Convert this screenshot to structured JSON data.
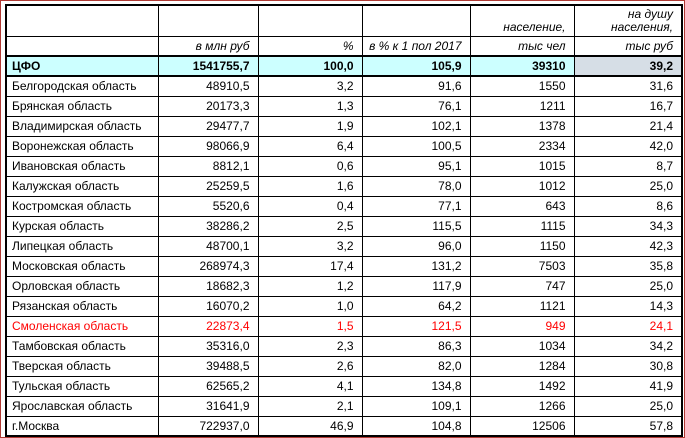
{
  "colors": {
    "frame_border": "#b03a34",
    "grid": "#000000",
    "total_row_bg": "#ccffff",
    "selected_cell_bg": "#d6dee6",
    "alert_text": "#ff0000"
  },
  "table": {
    "headers_row1": [
      "",
      "",
      "",
      "",
      "население,",
      "на душу\nнаселения,"
    ],
    "headers_row2": [
      "",
      "в млн руб",
      "%",
      "в % к 1 пол 2017",
      "тыс чел",
      "тыс руб"
    ],
    "rows": [
      {
        "name": "ЦФО",
        "values": [
          "1541755,7",
          "100,0",
          "105,9",
          "39310",
          "39,2"
        ],
        "type": "total"
      },
      {
        "name": "Белгородская область",
        "values": [
          "48910,5",
          "3,2",
          "91,6",
          "1550",
          "31,6"
        ],
        "type": "normal"
      },
      {
        "name": "Брянская область",
        "values": [
          "20173,3",
          "1,3",
          "76,1",
          "1211",
          "16,7"
        ],
        "type": "normal"
      },
      {
        "name": "Владимирская область",
        "values": [
          "29477,7",
          "1,9",
          "102,1",
          "1378",
          "21,4"
        ],
        "type": "normal"
      },
      {
        "name": "Воронежская область",
        "values": [
          "98066,9",
          "6,4",
          "100,5",
          "2334",
          "42,0"
        ],
        "type": "normal"
      },
      {
        "name": "Ивановская область",
        "values": [
          "8812,1",
          "0,6",
          "95,1",
          "1015",
          "8,7"
        ],
        "type": "normal"
      },
      {
        "name": "Калужская область",
        "values": [
          "25259,5",
          "1,6",
          "78,0",
          "1012",
          "25,0"
        ],
        "type": "normal"
      },
      {
        "name": "Костромская область",
        "values": [
          "5520,6",
          "0,4",
          "77,1",
          "643",
          "8,6"
        ],
        "type": "normal"
      },
      {
        "name": "Курская область",
        "values": [
          "38286,2",
          "2,5",
          "115,5",
          "1115",
          "34,3"
        ],
        "type": "normal"
      },
      {
        "name": "Липецкая область",
        "values": [
          "48700,1",
          "3,2",
          "96,0",
          "1150",
          "42,3"
        ],
        "type": "normal"
      },
      {
        "name": "Московская область",
        "values": [
          "268974,3",
          "17,4",
          "131,2",
          "7503",
          "35,8"
        ],
        "type": "normal"
      },
      {
        "name": "Орловская область",
        "values": [
          "18682,3",
          "1,2",
          "117,9",
          "747",
          "25,0"
        ],
        "type": "normal"
      },
      {
        "name": "Рязанская область",
        "values": [
          "16070,2",
          "1,0",
          "64,2",
          "1121",
          "14,3"
        ],
        "type": "normal"
      },
      {
        "name": "Смоленская область",
        "values": [
          "22873,4",
          "1,5",
          "121,5",
          "949",
          "24,1"
        ],
        "type": "alert"
      },
      {
        "name": "Тамбовская область",
        "values": [
          "35316,0",
          "2,3",
          "86,3",
          "1034",
          "34,2"
        ],
        "type": "normal"
      },
      {
        "name": "Тверская область",
        "values": [
          "39488,5",
          "2,6",
          "82,0",
          "1284",
          "30,8"
        ],
        "type": "normal"
      },
      {
        "name": "Тульская область",
        "values": [
          "62565,2",
          "4,1",
          "134,8",
          "1492",
          "41,9"
        ],
        "type": "normal"
      },
      {
        "name": "Ярославская область",
        "values": [
          "31641,9",
          "2,1",
          "109,1",
          "1266",
          "25,0"
        ],
        "type": "normal"
      },
      {
        "name": "г.Москва",
        "values": [
          "722937,0",
          "46,9",
          "104,8",
          "12506",
          "57,8"
        ],
        "type": "normal"
      }
    ]
  }
}
